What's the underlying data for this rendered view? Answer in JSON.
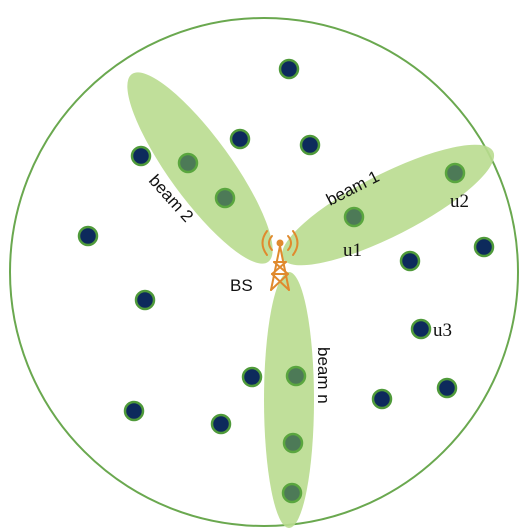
{
  "labels": {
    "bs": "BS",
    "beam1": "beam 1",
    "beam2": "beam 2",
    "beamn": "beam n",
    "u1": "u1",
    "u2": "u2",
    "u3": "u3"
  },
  "colors": {
    "cell_border": "#6aa84f",
    "beam_fill": "#b9dc8f",
    "user_fill": "#0d2a5c",
    "user_ring": "#4f9a3a",
    "served_user_fill": "#4d7a57",
    "tower": "#e08a2e"
  },
  "icons": {
    "base_station": "antenna-tower-icon"
  }
}
